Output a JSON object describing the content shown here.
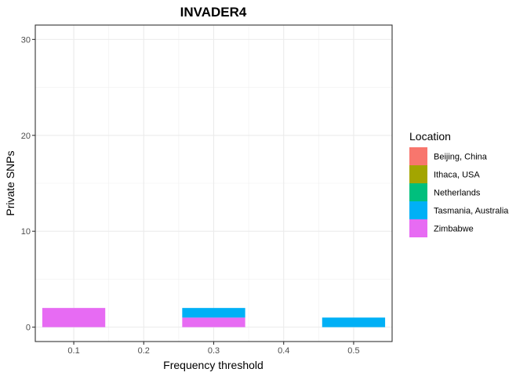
{
  "chart_data": {
    "type": "bar",
    "title": "INVADER4",
    "xlabel": "Frequency threshold",
    "ylabel": "Private SNPs",
    "xlim": [
      0.045,
      0.555
    ],
    "ylim": [
      -1.5,
      31.5
    ],
    "xticks": [
      0.1,
      0.2,
      0.3,
      0.4,
      0.5
    ],
    "xtick_labels": [
      "0.1",
      "0.2",
      "0.3",
      "0.4",
      "0.5"
    ],
    "yticks": [
      0,
      10,
      20,
      30
    ],
    "ytick_labels": [
      "0",
      "10",
      "20",
      "30"
    ],
    "bar_width": 0.09,
    "stacked": true,
    "grid": true,
    "legend": {
      "title": "Location",
      "position": "right",
      "entries": [
        {
          "name": "Beijing, China",
          "color": "#F8766D"
        },
        {
          "name": "Ithaca, USA",
          "color": "#A3A500"
        },
        {
          "name": "Netherlands",
          "color": "#00BF7D"
        },
        {
          "name": "Tasmania, Australia",
          "color": "#00B0F6"
        },
        {
          "name": "Zimbabwe",
          "color": "#E76BF3"
        }
      ]
    },
    "x": [
      0.1,
      0.3,
      0.5
    ],
    "series": [
      {
        "name": "Tasmania, Australia",
        "color": "#00B0F6",
        "values": [
          0,
          1,
          1
        ]
      },
      {
        "name": "Zimbabwe",
        "color": "#E76BF3",
        "values": [
          2,
          1,
          0
        ]
      }
    ]
  }
}
